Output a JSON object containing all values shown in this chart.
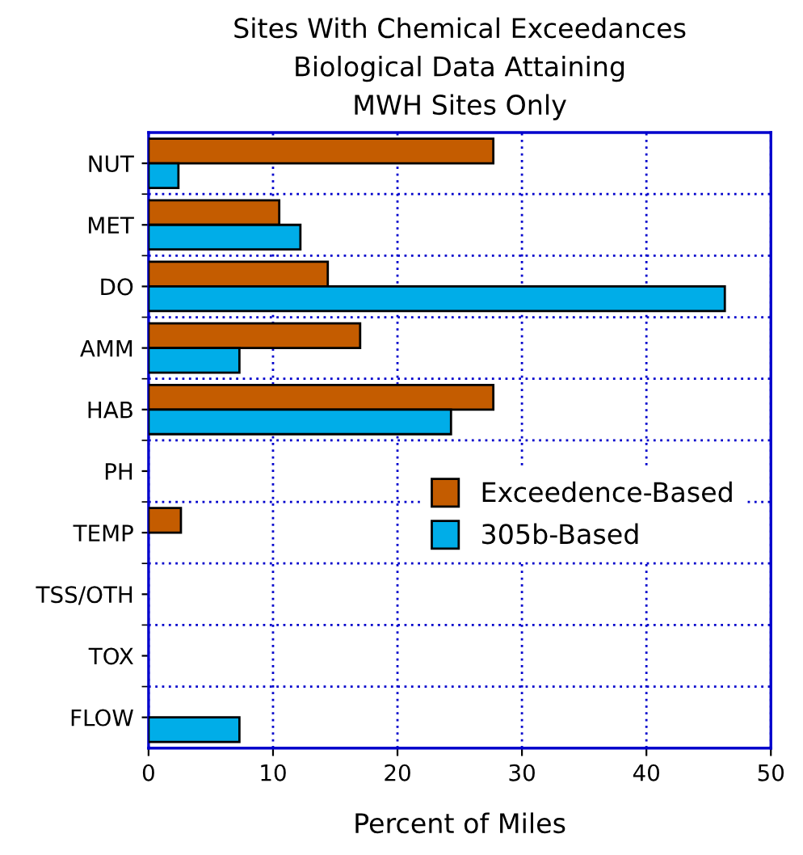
{
  "chart_data": {
    "type": "bar",
    "orientation": "horizontal",
    "title": "Sites With Chemical Exceedances\nBiological Data Attaining\nMWH Sites Only",
    "xlabel": "Percent of Miles",
    "categories": [
      "NUT",
      "MET",
      "DO",
      "AMM",
      "HAB",
      "PH",
      "TEMP",
      "TSS/OTH",
      "TOX",
      "FLOW"
    ],
    "series": [
      {
        "name": "Exceedence-Based",
        "color": "#c45c00",
        "values": [
          27.7,
          10.5,
          14.4,
          17.0,
          27.7,
          null,
          2.6,
          null,
          null,
          null
        ]
      },
      {
        "name": "305b-Based",
        "color": "#00ade8",
        "values": [
          2.4,
          12.2,
          46.3,
          7.3,
          24.3,
          null,
          null,
          null,
          null,
          7.3
        ]
      }
    ],
    "xlim": [
      0,
      50
    ],
    "xticks": [
      0,
      10,
      20,
      30,
      40,
      50
    ],
    "grid": true,
    "legend": "right"
  }
}
